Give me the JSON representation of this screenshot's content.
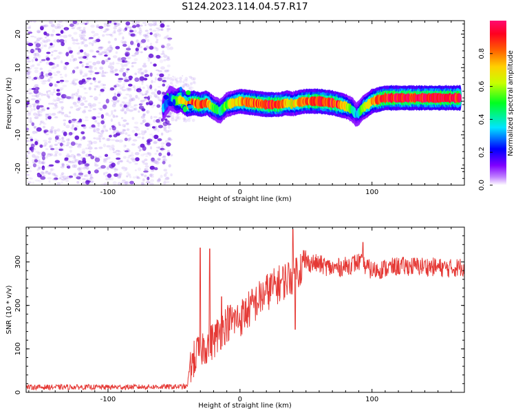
{
  "title": "S124.2023.114.04.57.R17",
  "colors": {
    "signal": "#e53935",
    "noise_dots": "#b48ef0",
    "noise_dots_dark": "#6a1bd8",
    "axis": "#000000"
  },
  "chart_data": [
    {
      "type": "heatmap",
      "xlabel": "Height of straight line (km)",
      "ylabel": "Frequency (Hz)",
      "xlim": [
        -162,
        170
      ],
      "ylim": [
        -25,
        24
      ],
      "xticks": [
        -100,
        0,
        100
      ],
      "yticks": [
        -20,
        -10,
        0,
        10,
        20
      ],
      "colorbar": {
        "label": "Normalized spectral amplitude",
        "ticks": [
          0.0,
          0.2,
          0.4,
          0.6,
          0.8
        ],
        "colormap": "gist_rainbow",
        "range": [
          0.0,
          1.0
        ]
      },
      "noise_region_x": [
        -162,
        -55
      ],
      "ridge": {
        "x": [
          -58,
          -53,
          -48,
          -45,
          -40,
          -35,
          -30,
          -25,
          -20,
          -15,
          -10,
          -5,
          0,
          10,
          20,
          30,
          35,
          40,
          45,
          50,
          60,
          70,
          75,
          80,
          85,
          88,
          90,
          93,
          97,
          100,
          105,
          110,
          120,
          130,
          140,
          150,
          160,
          167
        ],
        "y": [
          -2,
          1,
          0,
          0.5,
          -1,
          -0.5,
          -1,
          -0.5,
          -2,
          -3,
          -1,
          -0.5,
          0,
          -0.5,
          -1,
          -1,
          -0.5,
          -0.8,
          -0.3,
          0,
          0,
          -0.5,
          -1,
          -1.5,
          -2.5,
          -4,
          -3.5,
          -2,
          -1,
          0,
          0.5,
          1,
          1,
          1,
          1,
          1,
          1,
          1
        ],
        "amplitude": [
          0.3,
          0.2,
          0.5,
          0.6,
          0.7,
          0.75,
          0.8,
          0.75,
          0.5,
          0.4,
          0.5,
          0.6,
          0.65,
          0.75,
          0.8,
          0.8,
          0.65,
          0.6,
          0.7,
          0.75,
          0.8,
          0.8,
          0.75,
          0.6,
          0.4,
          0.3,
          0.35,
          0.5,
          0.6,
          0.7,
          0.8,
          0.85,
          0.85,
          0.85,
          0.85,
          0.85,
          0.85,
          0.85
        ]
      }
    },
    {
      "type": "line",
      "xlabel": "Height of straight line (km)",
      "ylabel": "SNR (10 * v/v)",
      "xlim": [
        -162,
        170
      ],
      "ylim": [
        0,
        380
      ],
      "xticks": [
        -100,
        0,
        100
      ],
      "yticks": [
        0,
        100,
        200,
        300
      ],
      "series": [
        {
          "trend_x": [
            -162,
            -100,
            -50,
            -40,
            -38,
            -30,
            -20,
            -10,
            0,
            10,
            20,
            30,
            40,
            50,
            60,
            70,
            80,
            90,
            100,
            110,
            120,
            140,
            160,
            170
          ],
          "trend_y": [
            12,
            12,
            13,
            13,
            60,
            100,
            120,
            160,
            170,
            200,
            230,
            250,
            270,
            300,
            295,
            285,
            290,
            300,
            280,
            285,
            290,
            290,
            285,
            290
          ],
          "spikes_x": [
            -30,
            -23,
            -14,
            24,
            40,
            42,
            93
          ],
          "spikes_y": [
            332,
            330,
            220,
            268,
            375,
            145,
            345
          ]
        }
      ]
    }
  ]
}
